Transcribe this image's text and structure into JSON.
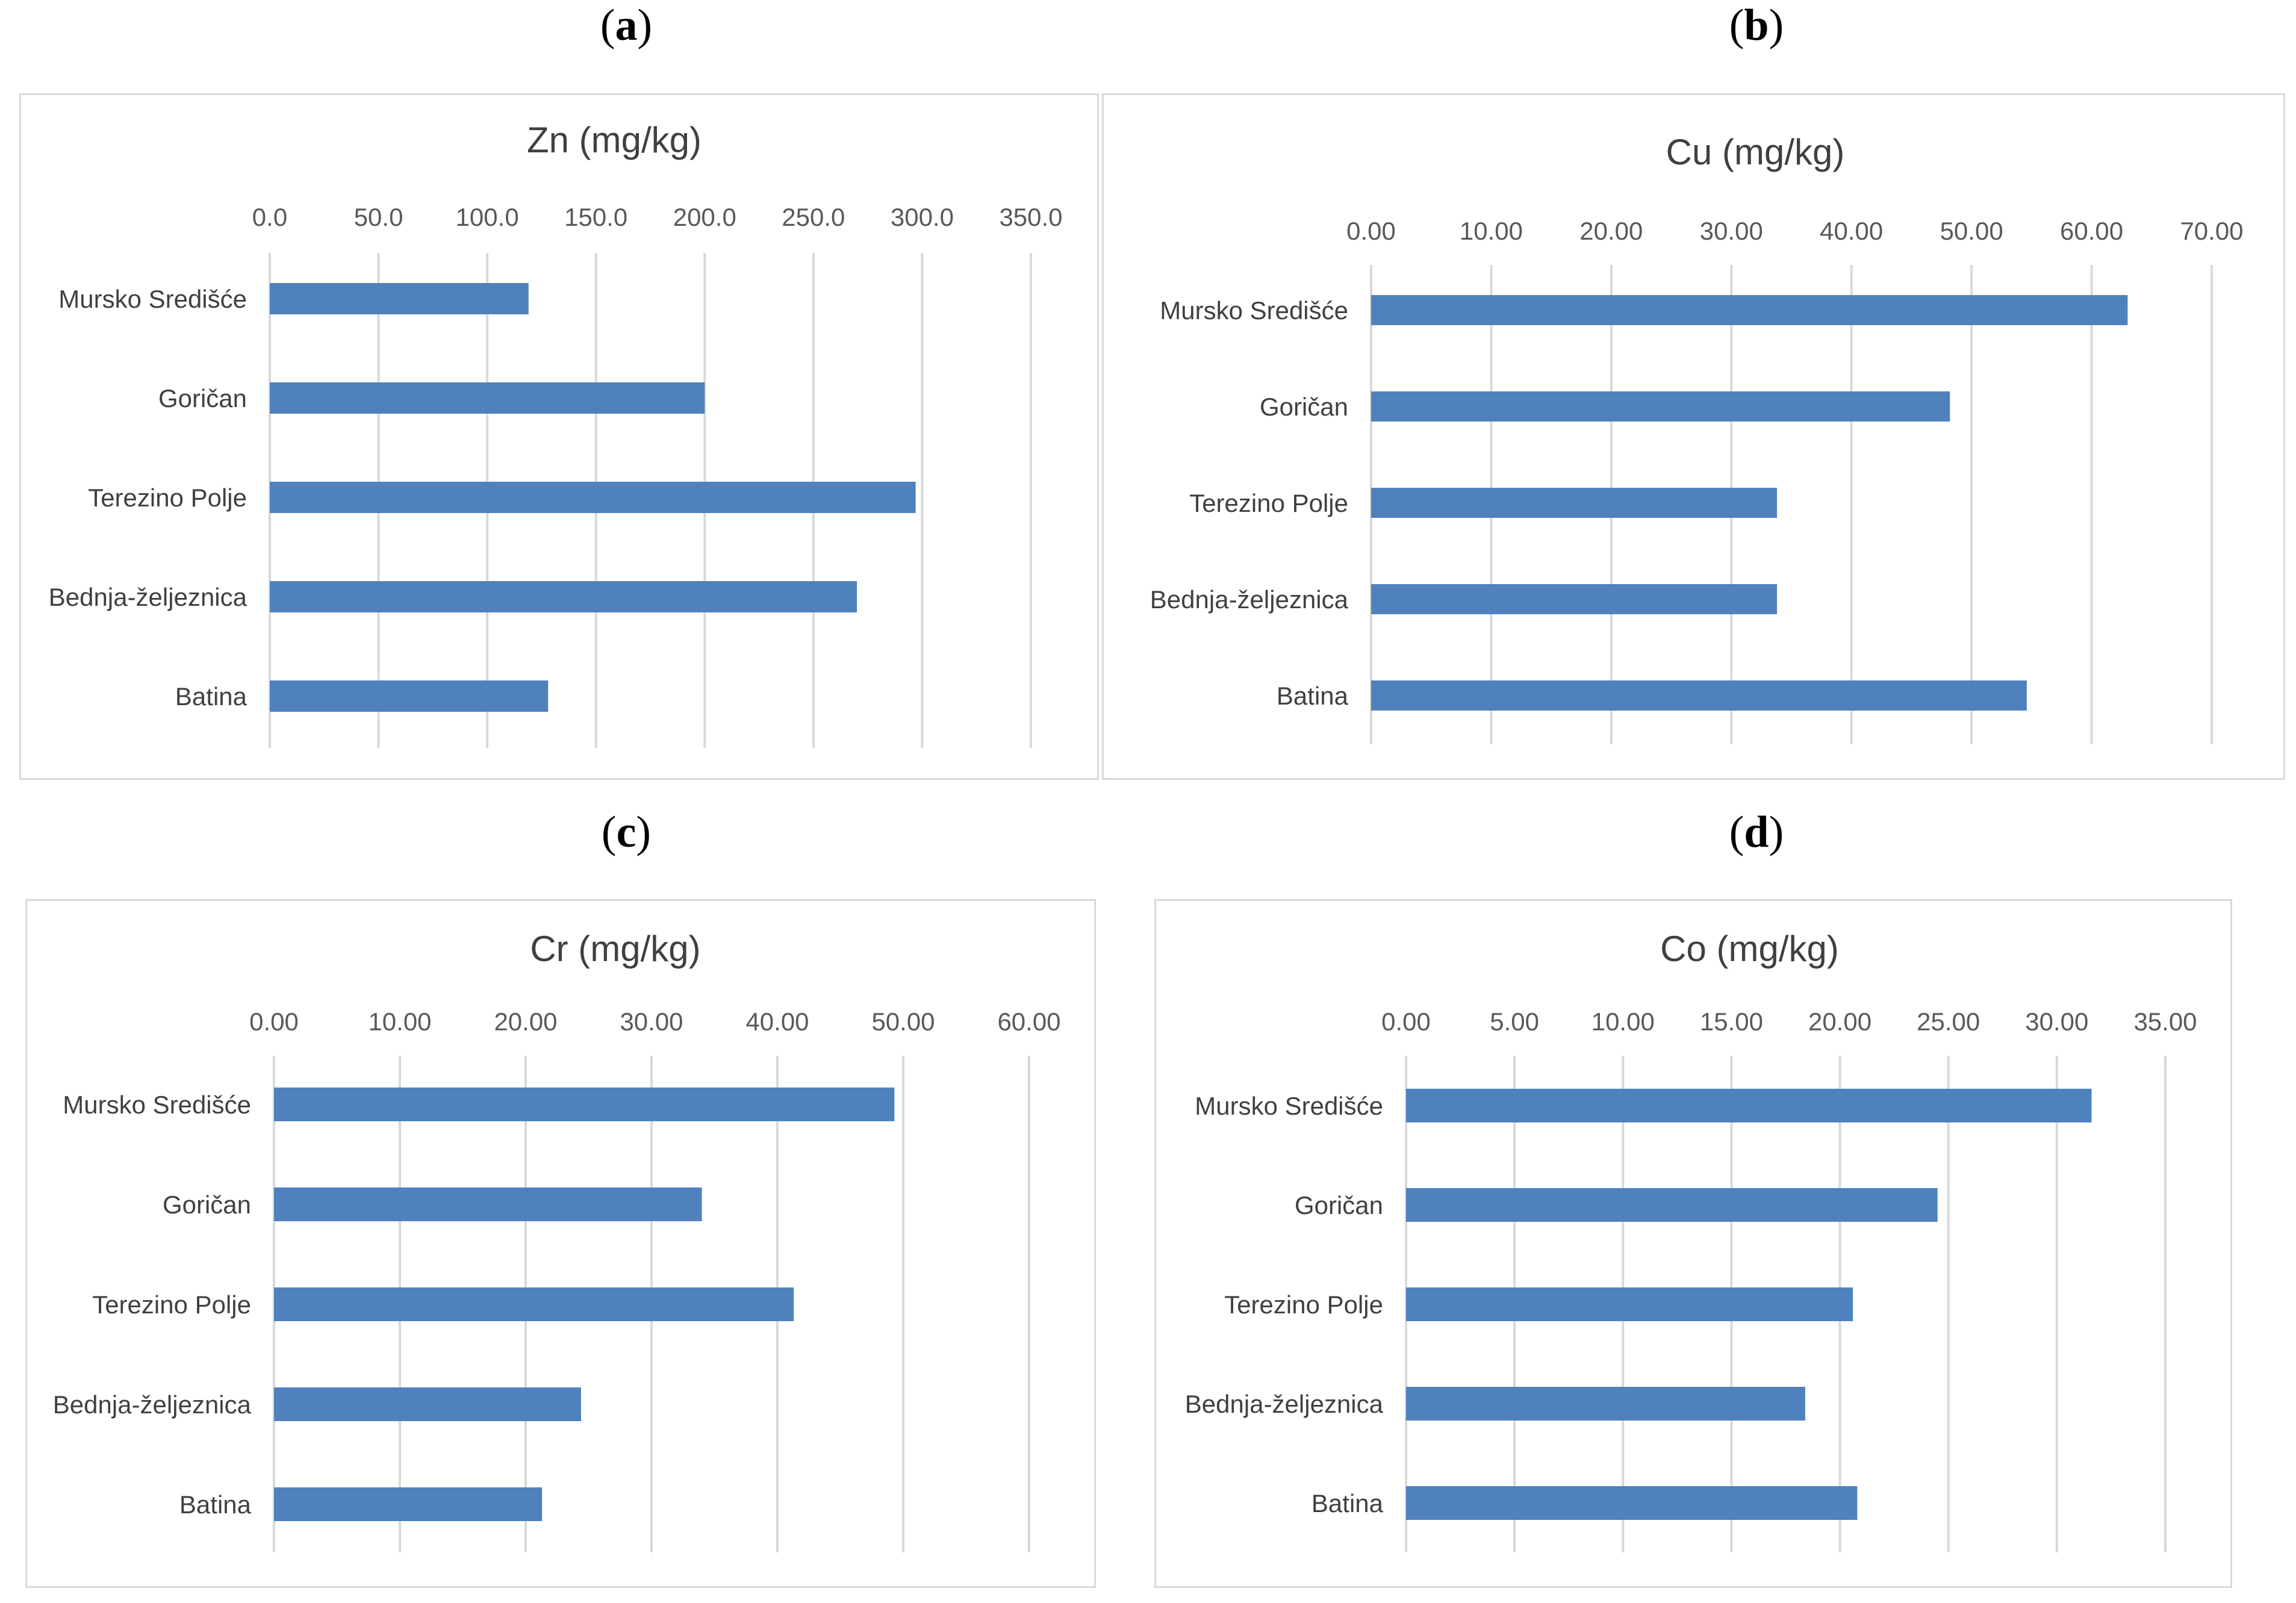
{
  "panels": [
    {
      "letter": "a"
    },
    {
      "letter": "b"
    },
    {
      "letter": "c"
    },
    {
      "letter": "d"
    }
  ],
  "colors": {
    "bar": "#4f81bd",
    "grid": "#d9d9d9"
  },
  "chart_data": [
    {
      "type": "bar",
      "orientation": "horizontal",
      "title": "Zn (mg/kg)",
      "categories": [
        "Mursko Središće",
        "Goričan",
        "Terezino Polje",
        "Bednja-željeznica",
        "Batina"
      ],
      "values": [
        119,
        200,
        297,
        270,
        128
      ],
      "xlim": [
        0,
        350
      ],
      "ticks": [
        "0.0",
        "50.0",
        "100.0",
        "150.0",
        "200.0",
        "250.0",
        "300.0",
        "350.0"
      ],
      "axis_position": "top",
      "grid": true
    },
    {
      "type": "bar",
      "orientation": "horizontal",
      "title": "Cu (mg/kg)",
      "categories": [
        "Mursko Središće",
        "Goričan",
        "Terezino Polje",
        "Bednja-željeznica",
        "Batina"
      ],
      "values": [
        63.0,
        48.2,
        33.8,
        33.8,
        54.6
      ],
      "xlim": [
        0,
        70
      ],
      "ticks": [
        "0.00",
        "10.00",
        "20.00",
        "30.00",
        "40.00",
        "50.00",
        "60.00",
        "70.00"
      ],
      "axis_position": "top",
      "grid": true
    },
    {
      "type": "bar",
      "orientation": "horizontal",
      "title": "Cr (mg/kg)",
      "categories": [
        "Mursko Središće",
        "Goričan",
        "Terezino Polje",
        "Bednja-željeznica",
        "Batina"
      ],
      "values": [
        49.3,
        34.0,
        41.3,
        24.4,
        21.3
      ],
      "xlim": [
        0,
        60
      ],
      "ticks": [
        "0.00",
        "10.00",
        "20.00",
        "30.00",
        "40.00",
        "50.00",
        "60.00"
      ],
      "axis_position": "top",
      "grid": true
    },
    {
      "type": "bar",
      "orientation": "horizontal",
      "title": "Co (mg/kg)",
      "categories": [
        "Mursko Središće",
        "Goričan",
        "Terezino Polje",
        "Bednja-željeznica",
        "Batina"
      ],
      "values": [
        31.6,
        24.5,
        20.6,
        18.4,
        20.8
      ],
      "xlim": [
        0,
        35
      ],
      "ticks": [
        "0.00",
        "5.00",
        "10.00",
        "15.00",
        "20.00",
        "25.00",
        "30.00",
        "35.00"
      ],
      "axis_position": "top",
      "grid": true
    }
  ]
}
